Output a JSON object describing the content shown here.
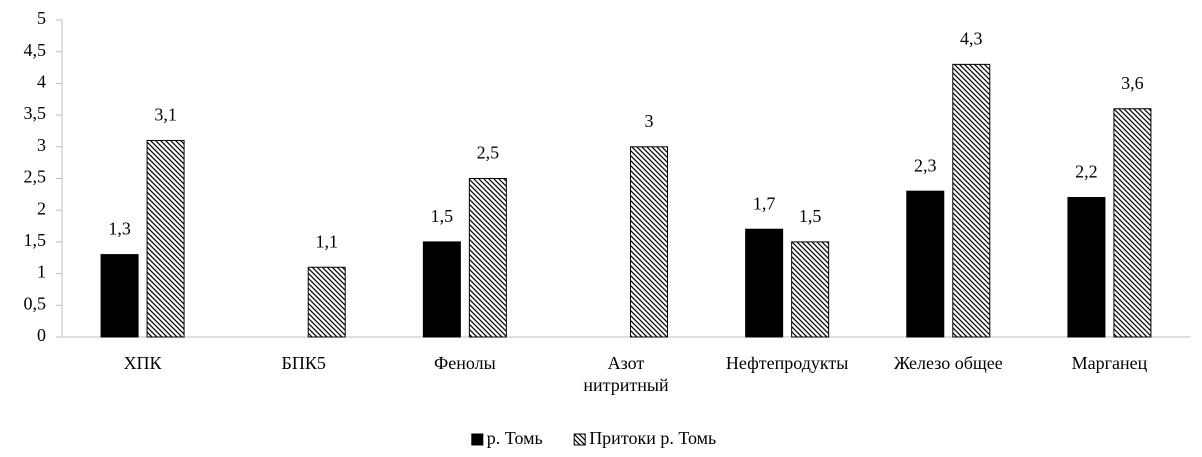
{
  "chart_data": {
    "type": "bar",
    "categories": [
      "ХПК",
      "БПК5",
      "Фенолы",
      "Азот нитритный",
      "Нефтепродукты",
      "Железо общее",
      "Марганец"
    ],
    "series": [
      {
        "name": "р. Томь",
        "color": "#000000",
        "values": [
          1.3,
          null,
          1.5,
          null,
          1.7,
          2.3,
          2.2
        ],
        "value_labels": [
          "1,3",
          null,
          "1,5",
          null,
          "1,7",
          "2,3",
          "2,2"
        ]
      },
      {
        "name": "Притоки р. Томь",
        "color": "#000000",
        "pattern": "diagonal",
        "values": [
          3.1,
          1.1,
          2.5,
          3,
          1.5,
          4.3,
          3.6
        ],
        "value_labels": [
          "3,1",
          "1,1",
          "2,5",
          "3",
          "1,5",
          "4,3",
          "3,6"
        ]
      }
    ],
    "ylim": [
      0,
      5
    ],
    "yticks": [
      0,
      {
        "value": 0.5,
        "label": "0,5"
      },
      1,
      {
        "value": 1.5,
        "label": "1,5"
      },
      2,
      {
        "value": 2.5,
        "label": "2,5"
      },
      3,
      {
        "value": 3.5,
        "label": "3,5"
      },
      4,
      {
        "value": 4.5,
        "label": "4,5"
      },
      5
    ],
    "grid": false,
    "legend": "bottom"
  }
}
